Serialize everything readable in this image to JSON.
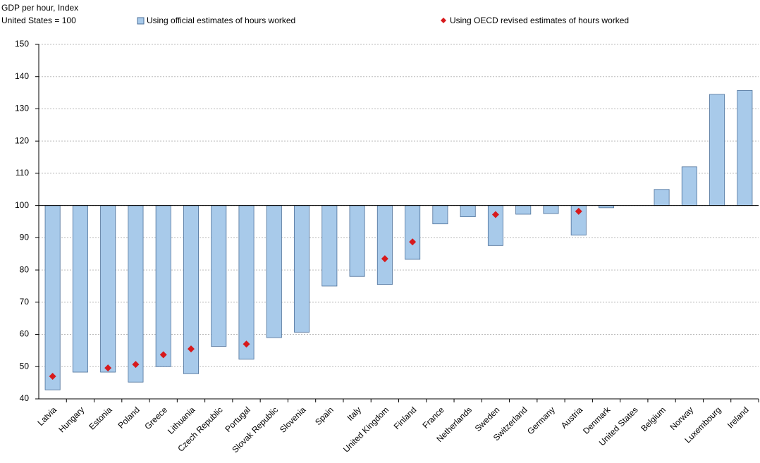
{
  "chart_data": {
    "type": "bar",
    "ylabel": [
      "GDP per hour, Index",
      "United States = 100"
    ],
    "categories": [
      "Latvia",
      "Hungary",
      "Estonia",
      "Poland",
      "Greece",
      "Lithuania",
      "Czech Republic",
      "Portugal",
      "Slovak Republic",
      "Slovenia",
      "Spain",
      "Italy",
      "United Kingdom",
      "Finland",
      "France",
      "Netherlands",
      "Sweden",
      "Switzerland",
      "Germany",
      "Austria",
      "Denmark",
      "United States",
      "Belgium",
      "Norway",
      "Luxembourg",
      "Ireland"
    ],
    "series": [
      {
        "name": "Using official estimates of hours worked",
        "type": "bar",
        "color": "#a8caea",
        "values": [
          42.8,
          48.3,
          48.3,
          45.2,
          50,
          47.8,
          56.3,
          52.3,
          59,
          60.7,
          75,
          78,
          75.5,
          83.3,
          94.3,
          96.5,
          87.6,
          97.3,
          97.5,
          90.8,
          99.3,
          100,
          105,
          112,
          134.5,
          135.7
        ]
      },
      {
        "name": "Using OECD revised estimates of hours worked",
        "type": "marker",
        "color": "#d7191c",
        "values": [
          47,
          null,
          49.6,
          50.7,
          53.7,
          55.5,
          null,
          57,
          null,
          null,
          null,
          null,
          83.5,
          88.7,
          null,
          null,
          97.2,
          null,
          null,
          98.2,
          null,
          null,
          null,
          null,
          null,
          null
        ]
      }
    ],
    "bar_baseline": 100,
    "ylim": [
      40,
      150
    ],
    "yticks": [
      40,
      50,
      60,
      70,
      80,
      90,
      100,
      110,
      120,
      130,
      140,
      150
    ],
    "grid": true
  }
}
